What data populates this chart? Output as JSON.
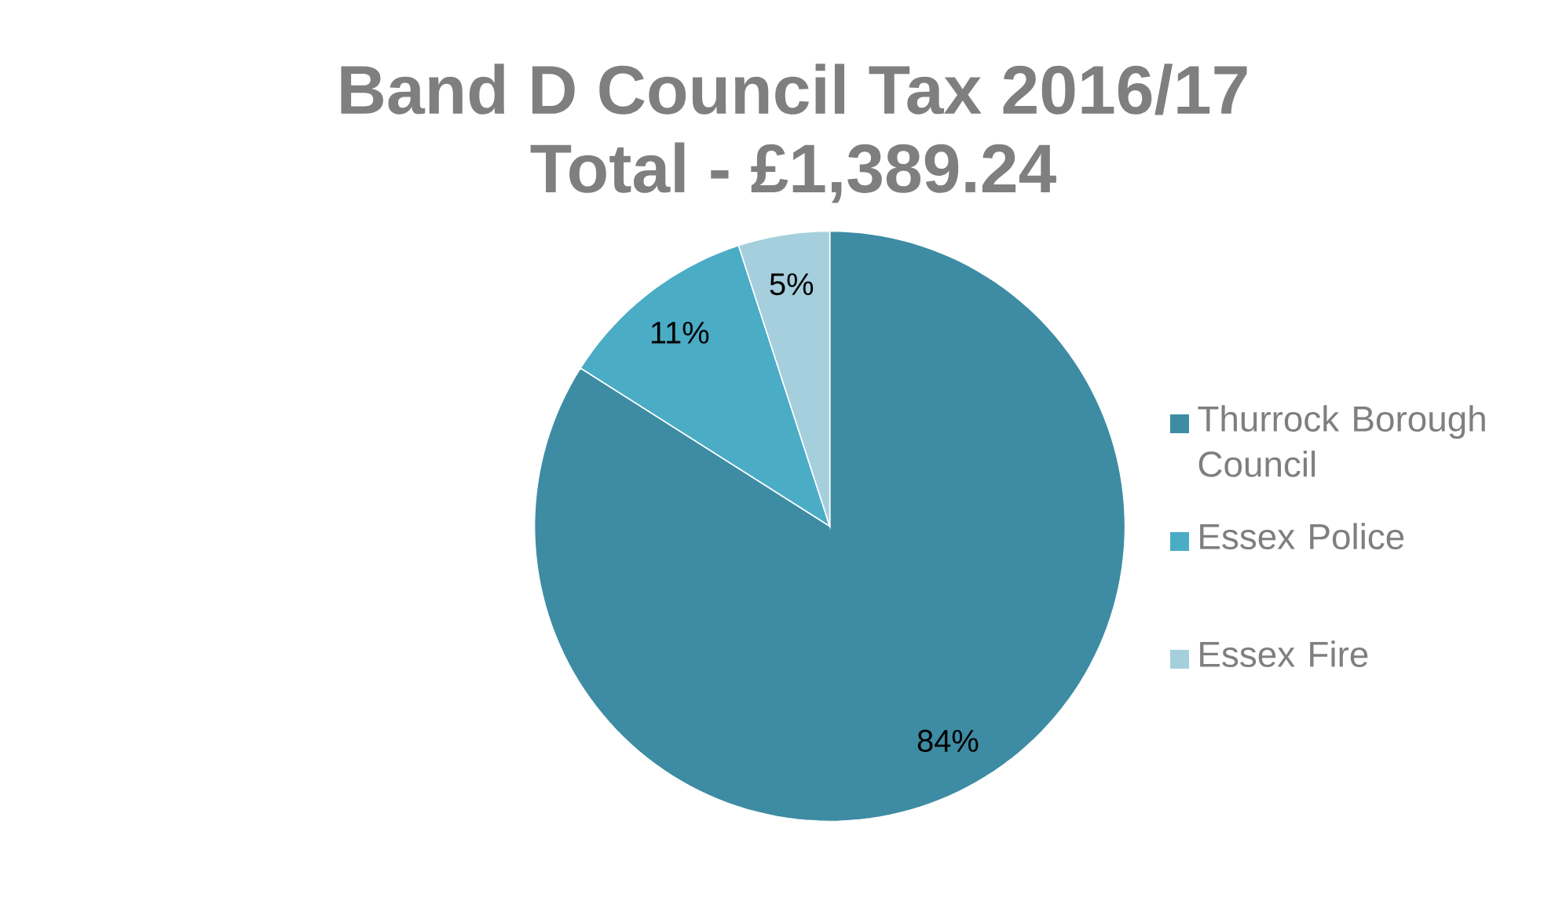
{
  "chart_data": {
    "type": "pie",
    "title": "Band D Council Tax 2016/17",
    "subtitle": "Total - £1,389.24",
    "categories": [
      "Thurrock Borough Council",
      "Essex Police",
      "Essex Fire"
    ],
    "values": [
      84,
      11,
      5
    ],
    "colors": [
      "#3d8ca3",
      "#4bacc6",
      "#a5cfdd"
    ],
    "value_labels": [
      "84%",
      "11%",
      "5%"
    ],
    "legend": "right"
  }
}
